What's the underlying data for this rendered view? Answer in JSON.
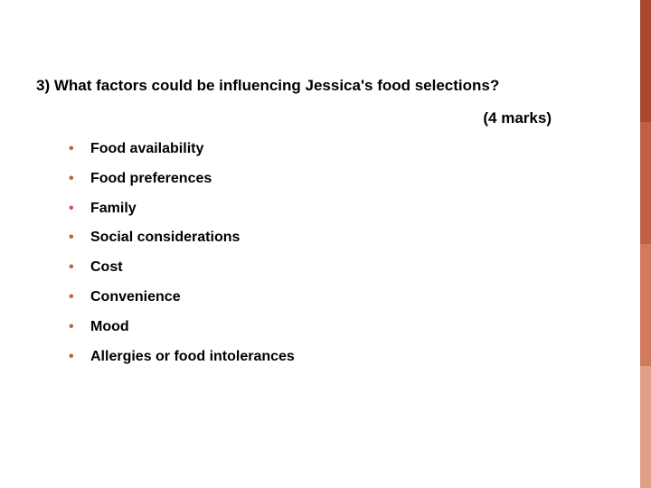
{
  "slide": {
    "question": "3) What factors could be influencing Jessica's food selections?",
    "marks": "(4 marks)",
    "bullets": [
      "Food availability",
      "Food preferences",
      "Family",
      "Social considerations",
      "Cost",
      "Convenience",
      "Mood",
      "Allergies or food intolerances"
    ],
    "accent_colors": [
      "#a84a2f",
      "#c06048",
      "#d17a5c",
      "#e0a088"
    ],
    "bullet_color": "#c06048",
    "text_color": "#000000",
    "background_color": "#ffffff",
    "question_fontsize": 17,
    "marks_fontsize": 17,
    "bullet_fontsize": 16,
    "font_weight": "bold"
  }
}
